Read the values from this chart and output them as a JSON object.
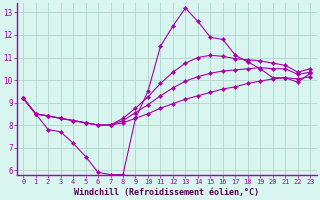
{
  "xlabel": "Windchill (Refroidissement éolien,°C)",
  "bg_color": "#d8f5f0",
  "line_color": "#aa00aa",
  "grid_color": "#b0d8cc",
  "axis_color": "#aa00aa",
  "xlim": [
    -0.5,
    23.5
  ],
  "ylim": [
    5.8,
    13.4
  ],
  "yticks": [
    6,
    7,
    8,
    9,
    10,
    11,
    12,
    13
  ],
  "xticks": [
    0,
    1,
    2,
    3,
    4,
    5,
    6,
    7,
    8,
    9,
    10,
    11,
    12,
    13,
    14,
    15,
    16,
    17,
    18,
    19,
    20,
    21,
    22,
    23
  ],
  "series": [
    [
      9.2,
      8.5,
      7.8,
      7.7,
      7.2,
      6.6,
      5.9,
      5.8,
      5.8,
      8.3,
      9.5,
      11.5,
      12.4,
      13.2,
      12.6,
      11.9,
      11.8,
      11.1,
      10.8,
      10.5,
      10.1,
      10.1,
      9.9,
      10.3
    ],
    [
      9.2,
      8.5,
      8.4,
      8.3,
      8.2,
      8.1,
      8.0,
      8.0,
      8.1,
      8.3,
      8.5,
      8.75,
      8.95,
      9.15,
      9.3,
      9.45,
      9.6,
      9.7,
      9.85,
      9.95,
      10.05,
      10.1,
      10.05,
      10.15
    ],
    [
      9.2,
      8.5,
      8.4,
      8.3,
      8.2,
      8.1,
      8.0,
      8.0,
      8.2,
      8.55,
      8.9,
      9.3,
      9.65,
      9.95,
      10.15,
      10.3,
      10.4,
      10.45,
      10.5,
      10.55,
      10.5,
      10.5,
      10.25,
      10.35
    ],
    [
      9.2,
      8.5,
      8.4,
      8.3,
      8.2,
      8.1,
      8.0,
      8.0,
      8.3,
      8.75,
      9.25,
      9.85,
      10.35,
      10.75,
      11.0,
      11.1,
      11.05,
      10.95,
      10.9,
      10.85,
      10.75,
      10.65,
      10.35,
      10.5
    ]
  ]
}
